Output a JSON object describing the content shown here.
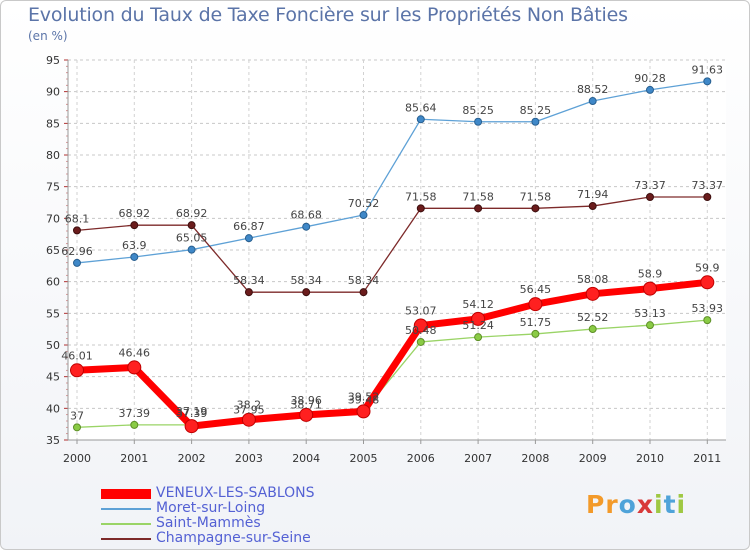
{
  "title": "Evolution du Taux de Taxe Foncière sur les Propriétés Non Bâties",
  "unit": "(en %)",
  "logo": "Proxiti",
  "chart_data": {
    "type": "line",
    "title": "Evolution du Taux de Taxe Foncière sur les Propriétés Non Bâties",
    "ylabel": "(en %)",
    "xlabel": "",
    "ylim": [
      35,
      95
    ],
    "yticks": [
      35,
      40,
      45,
      50,
      55,
      60,
      65,
      70,
      75,
      80,
      85,
      90,
      95
    ],
    "categories": [
      "2000",
      "2001",
      "2002",
      "2003",
      "2004",
      "2005",
      "2006",
      "2007",
      "2008",
      "2009",
      "2010",
      "2011"
    ],
    "grid": true,
    "legend_position": "bottom-left",
    "series": [
      {
        "name": "Moret-sur-Loing",
        "color": "#5ea1d6",
        "values": [
          62.96,
          63.9,
          65.05,
          66.87,
          68.68,
          70.52,
          85.64,
          85.25,
          85.25,
          88.52,
          90.28,
          91.63
        ],
        "labels": [
          "62.96",
          "63.9",
          "65.05",
          "66.87",
          "68.68",
          "70.52",
          "85.64",
          "85.25",
          "85.25",
          "88.52",
          "90.28",
          "91.63"
        ]
      },
      {
        "name": "Champagne-sur-Seine",
        "color": "#7d2a2a",
        "values": [
          68.1,
          68.92,
          68.92,
          58.34,
          58.34,
          58.34,
          71.58,
          71.58,
          71.58,
          71.94,
          73.37,
          73.37
        ],
        "labels": [
          "68.1",
          "68.92",
          "68.92",
          "58.34",
          "58.34",
          "58.34",
          "71.58",
          "71.58",
          "71.58",
          "71.94",
          "73.37",
          "73.37"
        ]
      },
      {
        "name": "Saint-Mammès",
        "color": "#9ad466",
        "values": [
          37,
          37.39,
          37.39,
          37.95,
          38.71,
          39.48,
          50.48,
          51.24,
          51.75,
          52.52,
          53.13,
          53.93
        ],
        "labels": [
          "37",
          "37.39",
          "37.39",
          "37.95",
          "38.71",
          "39.48",
          "50.48",
          "51.24",
          "51.75",
          "52.52",
          "53.13",
          "53.93"
        ]
      },
      {
        "name": "VENEUX-LES-SABLONS",
        "color": "#ff0000",
        "values": [
          46.01,
          46.46,
          37.19,
          38.2,
          38.96,
          39.52,
          53.07,
          54.12,
          56.45,
          58.08,
          58.9,
          59.9
        ],
        "labels": [
          "46.01",
          "46.46",
          "37.19",
          "38.2",
          "38.96",
          "39.52",
          "53.07",
          "54.12",
          "56.45",
          "58.08",
          "58.9",
          "59.9"
        ]
      }
    ]
  },
  "legend": [
    {
      "name": "VENEUX-LES-SABLONS",
      "color": "#ff0000"
    },
    {
      "name": "Moret-sur-Loing",
      "color": "#5ea1d6"
    },
    {
      "name": "Saint-Mammès",
      "color": "#9ad466"
    },
    {
      "name": "Champagne-sur-Seine",
      "color": "#7d2a2a"
    }
  ]
}
